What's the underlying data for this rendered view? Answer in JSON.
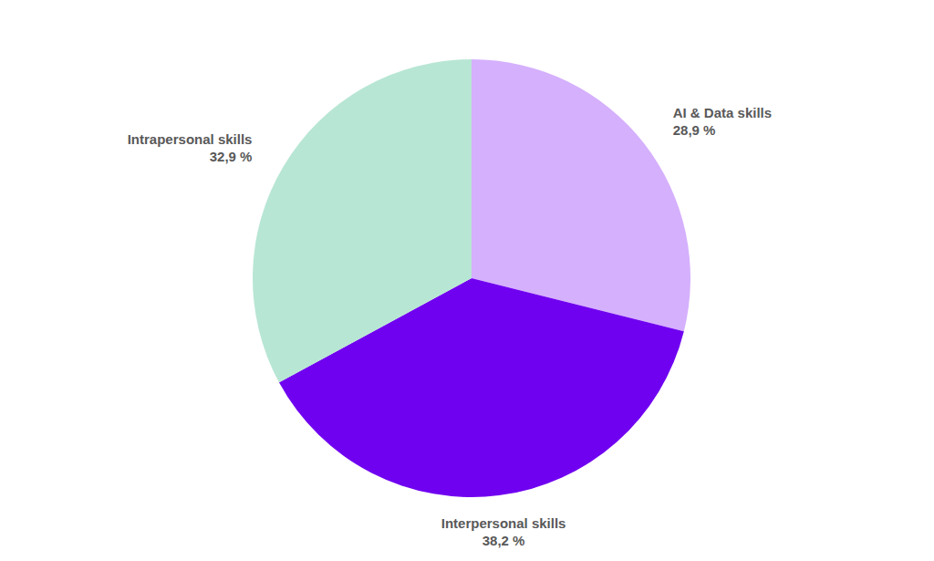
{
  "chart_data": {
    "type": "pie",
    "categories": [
      "AI & Data skills",
      "Interpersonal skills",
      "Intrapersonal skills"
    ],
    "values": [
      28.9,
      38.2,
      32.9
    ],
    "value_labels": [
      "28,9 %",
      "38,2 %",
      "32,9 %"
    ],
    "colors": [
      "#d5b0fd",
      "#7000f0",
      "#b8e6d4"
    ],
    "data_labels": true
  }
}
